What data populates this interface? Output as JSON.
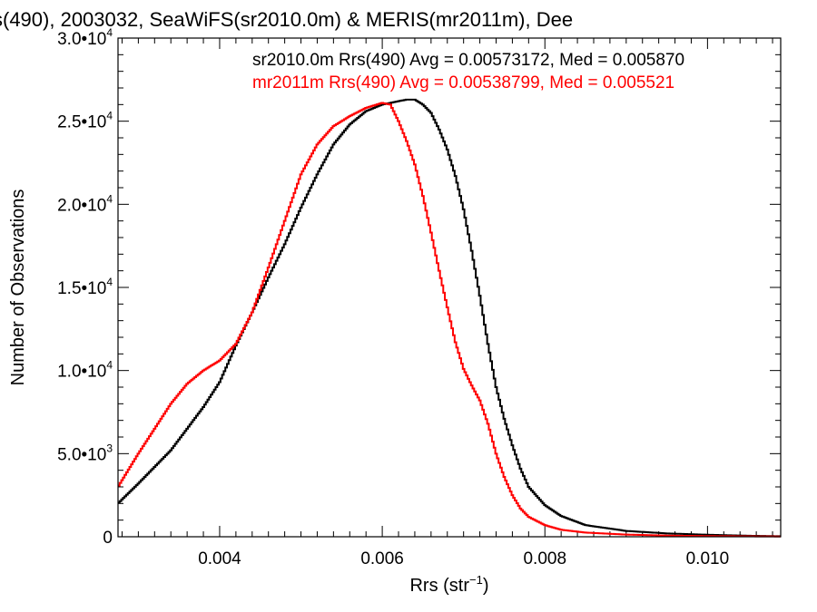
{
  "chart_data": {
    "type": "line",
    "title": "s(490), 2003032, SeaWiFS(sr2010.0m) & MERIS(mr2011m), Dee",
    "xlabel_main": "Rrs (str",
    "xlabel_sup": "−1",
    "xlabel_end": ")",
    "ylabel": "Number of Observations",
    "xlim": [
      0.00275,
      0.0109
    ],
    "ylim": [
      0,
      30000
    ],
    "x_ticks": [
      {
        "value": 0.004,
        "label": "0.004"
      },
      {
        "value": 0.006,
        "label": "0.006"
      },
      {
        "value": 0.008,
        "label": "0.008"
      },
      {
        "value": 0.01,
        "label": "0.010"
      }
    ],
    "y_ticks": [
      {
        "value": 0,
        "mant": "0",
        "exp": ""
      },
      {
        "value": 5000,
        "mant": "5.0•10",
        "exp": "3"
      },
      {
        "value": 10000,
        "mant": "1.0•10",
        "exp": "4"
      },
      {
        "value": 15000,
        "mant": "1.5•10",
        "exp": "4"
      },
      {
        "value": 20000,
        "mant": "2.0•10",
        "exp": "4"
      },
      {
        "value": 25000,
        "mant": "2.5•10",
        "exp": "4"
      },
      {
        "value": 30000,
        "mant": "3.0•10",
        "exp": "4"
      }
    ],
    "series": [
      {
        "name": "sr2010.0m",
        "legend": "sr2010.0m Rrs(490) Avg = 0.00573172, Med = 0.005870",
        "color": "#000000",
        "points": [
          [
            0.00275,
            2000
          ],
          [
            0.003,
            3200
          ],
          [
            0.0032,
            4200
          ],
          [
            0.0034,
            5200
          ],
          [
            0.0036,
            6500
          ],
          [
            0.0038,
            7800
          ],
          [
            0.004,
            9300
          ],
          [
            0.0042,
            11500
          ],
          [
            0.0044,
            13500
          ],
          [
            0.0046,
            15600
          ],
          [
            0.0048,
            17600
          ],
          [
            0.005,
            19800
          ],
          [
            0.0052,
            21800
          ],
          [
            0.0054,
            23600
          ],
          [
            0.0056,
            24800
          ],
          [
            0.0058,
            25600
          ],
          [
            0.006,
            26000
          ],
          [
            0.0062,
            26200
          ],
          [
            0.0063,
            26300
          ],
          [
            0.0064,
            26300
          ],
          [
            0.0065,
            26000
          ],
          [
            0.0066,
            25500
          ],
          [
            0.0067,
            24500
          ],
          [
            0.0068,
            23300
          ],
          [
            0.0069,
            21700
          ],
          [
            0.007,
            19700
          ],
          [
            0.0071,
            17200
          ],
          [
            0.0072,
            14500
          ],
          [
            0.0073,
            11600
          ],
          [
            0.0074,
            9000
          ],
          [
            0.0075,
            7100
          ],
          [
            0.0076,
            5500
          ],
          [
            0.0077,
            4100
          ],
          [
            0.0078,
            3000
          ],
          [
            0.008,
            1900
          ],
          [
            0.0082,
            1250
          ],
          [
            0.0085,
            700
          ],
          [
            0.009,
            350
          ],
          [
            0.0095,
            200
          ],
          [
            0.01,
            120
          ],
          [
            0.0105,
            60
          ],
          [
            0.0109,
            30
          ]
        ]
      },
      {
        "name": "mr2011m",
        "legend": "mr2011m Rrs(490) Avg = 0.00538799, Med = 0.005521",
        "color": "#ff0000",
        "points": [
          [
            0.00275,
            3000
          ],
          [
            0.003,
            5000
          ],
          [
            0.0032,
            6500
          ],
          [
            0.0034,
            8000
          ],
          [
            0.0036,
            9200
          ],
          [
            0.0038,
            10000
          ],
          [
            0.004,
            10600
          ],
          [
            0.0042,
            11600
          ],
          [
            0.0044,
            13500
          ],
          [
            0.0046,
            16200
          ],
          [
            0.0048,
            19000
          ],
          [
            0.005,
            21800
          ],
          [
            0.0052,
            23600
          ],
          [
            0.0054,
            24700
          ],
          [
            0.0056,
            25300
          ],
          [
            0.0058,
            25800
          ],
          [
            0.006,
            26100
          ],
          [
            0.0061,
            26000
          ],
          [
            0.0062,
            25000
          ],
          [
            0.0063,
            23800
          ],
          [
            0.0064,
            22400
          ],
          [
            0.0065,
            20500
          ],
          [
            0.0066,
            18300
          ],
          [
            0.0067,
            16000
          ],
          [
            0.0068,
            13800
          ],
          [
            0.0069,
            11700
          ],
          [
            0.007,
            10100
          ],
          [
            0.0071,
            9100
          ],
          [
            0.0072,
            8200
          ],
          [
            0.0073,
            6800
          ],
          [
            0.0074,
            5000
          ],
          [
            0.0075,
            3600
          ],
          [
            0.0076,
            2500
          ],
          [
            0.0077,
            1700
          ],
          [
            0.0078,
            1200
          ],
          [
            0.008,
            700
          ],
          [
            0.0082,
            420
          ],
          [
            0.0085,
            250
          ],
          [
            0.009,
            130
          ],
          [
            0.0095,
            70
          ],
          [
            0.01,
            40
          ],
          [
            0.0109,
            15
          ]
        ]
      }
    ]
  }
}
